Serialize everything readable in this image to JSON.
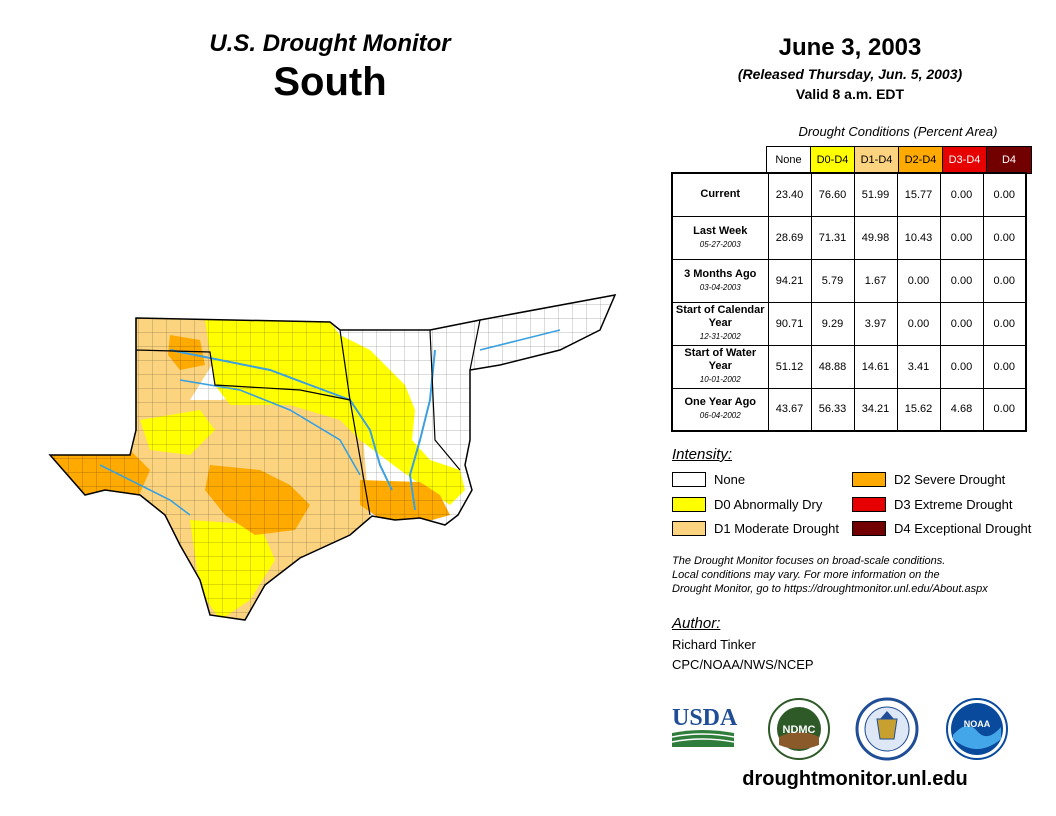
{
  "header": {
    "title_line1": "U.S. Drought Monitor",
    "title_line2": "South"
  },
  "date": {
    "main": "June 3, 2003",
    "released": "(Released Thursday, Jun. 5, 2003)",
    "valid": "Valid 8 a.m. EDT"
  },
  "table": {
    "caption": "Drought Conditions (Percent Area)",
    "columns": [
      {
        "label": "None",
        "color": "#ffffff",
        "text_color": "#000000"
      },
      {
        "label": "D0-D4",
        "color": "#ffff00",
        "text_color": "#000000"
      },
      {
        "label": "D1-D4",
        "color": "#fcd37f",
        "text_color": "#000000"
      },
      {
        "label": "D2-D4",
        "color": "#ffaa00",
        "text_color": "#000000"
      },
      {
        "label": "D3-D4",
        "color": "#e60000",
        "text_color": "#ffffff"
      },
      {
        "label": "D4",
        "color": "#730000",
        "text_color": "#ffffff"
      }
    ],
    "rows": [
      {
        "label": "Current",
        "sub": "",
        "values": [
          "23.40",
          "76.60",
          "51.99",
          "15.77",
          "0.00",
          "0.00"
        ]
      },
      {
        "label": "Last Week",
        "sub": "05-27-2003",
        "values": [
          "28.69",
          "71.31",
          "49.98",
          "10.43",
          "0.00",
          "0.00"
        ]
      },
      {
        "label": "3 Months Ago",
        "sub": "03-04-2003",
        "values": [
          "94.21",
          "5.79",
          "1.67",
          "0.00",
          "0.00",
          "0.00"
        ]
      },
      {
        "label": "Start of Calendar Year",
        "sub": "12-31-2002",
        "values": [
          "90.71",
          "9.29",
          "3.97",
          "0.00",
          "0.00",
          "0.00"
        ]
      },
      {
        "label": "Start of Water Year",
        "sub": "10-01-2002",
        "values": [
          "51.12",
          "48.88",
          "14.61",
          "3.41",
          "0.00",
          "0.00"
        ]
      },
      {
        "label": "One Year Ago",
        "sub": "06-04-2002",
        "values": [
          "43.67",
          "56.33",
          "34.21",
          "15.62",
          "4.68",
          "0.00"
        ]
      }
    ]
  },
  "legend": {
    "title": "Intensity:",
    "items": [
      {
        "label": "None",
        "color": "#ffffff"
      },
      {
        "label": "D0 Abnormally Dry",
        "color": "#ffff00"
      },
      {
        "label": "D1 Moderate Drought",
        "color": "#fcd37f"
      },
      {
        "label": "D2 Severe Drought",
        "color": "#ffaa00"
      },
      {
        "label": "D3 Extreme Drought",
        "color": "#e60000"
      },
      {
        "label": "D4 Exceptional Drought",
        "color": "#730000"
      }
    ]
  },
  "note": {
    "line1": "The Drought Monitor focuses on broad-scale conditions.",
    "line2": "Local conditions may vary. For more information on the",
    "line3": "Drought Monitor, go to https://droughtmonitor.unl.edu/About.aspx"
  },
  "author": {
    "title": "Author:",
    "name": "Richard Tinker",
    "org": "CPC/NOAA/NWS/NCEP"
  },
  "logos": {
    "usda": "USDA",
    "ndmc": "NDMC",
    "noaa": "NOAA"
  },
  "footer": {
    "website": "droughtmonitor.unl.edu"
  }
}
